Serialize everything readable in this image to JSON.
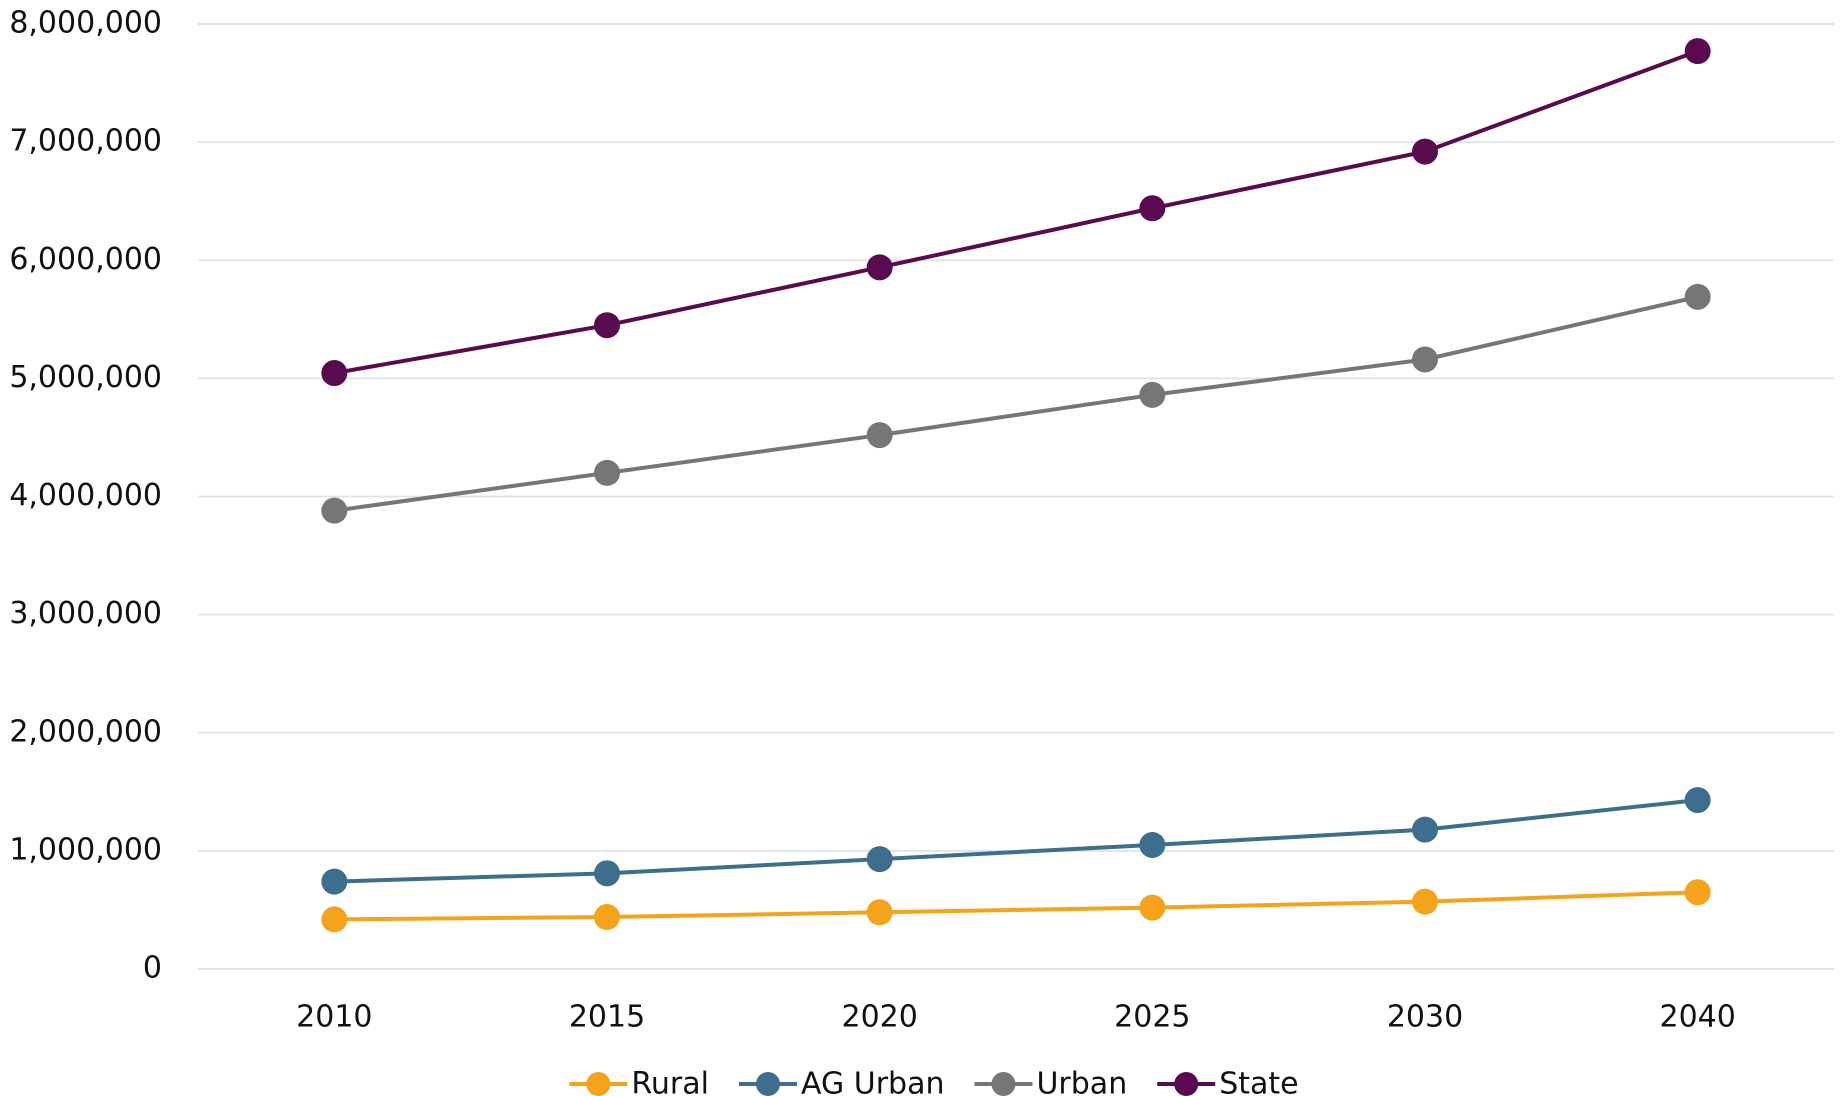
{
  "chart_data": {
    "type": "line",
    "categories": [
      "2010",
      "2015",
      "2020",
      "2025",
      "2030",
      "2040"
    ],
    "series": [
      {
        "name": "Rural",
        "color": "#f5a31a",
        "values": [
          420000,
          440000,
          480000,
          520000,
          570000,
          650000
        ]
      },
      {
        "name": "AG Urban",
        "color": "#3e6e8e",
        "values": [
          740000,
          810000,
          930000,
          1050000,
          1180000,
          1430000
        ]
      },
      {
        "name": "Urban",
        "color": "#767676",
        "values": [
          3880000,
          4200000,
          4520000,
          4860000,
          5160000,
          5690000
        ]
      },
      {
        "name": "State",
        "color": "#5a0a4f",
        "values": [
          5045000,
          5450000,
          5940000,
          6440000,
          6920000,
          7770000
        ]
      }
    ],
    "ylim": [
      0,
      8000000
    ],
    "yticks": [
      0,
      {
        "value": 1000000,
        "label": "1,000,000"
      },
      {
        "value": 2000000,
        "label": "2,000,000"
      },
      {
        "value": 3000000,
        "label": "3,000,000"
      },
      {
        "value": 4000000,
        "label": "4,000,000"
      },
      {
        "value": 5000000,
        "label": "5,000,000"
      },
      {
        "value": 6000000,
        "label": "6,000,000"
      },
      {
        "value": 7000000,
        "label": "7,000,000"
      },
      {
        "value": 8000000,
        "label": "8,000,000"
      }
    ],
    "grid": true,
    "legend": "bottom"
  }
}
